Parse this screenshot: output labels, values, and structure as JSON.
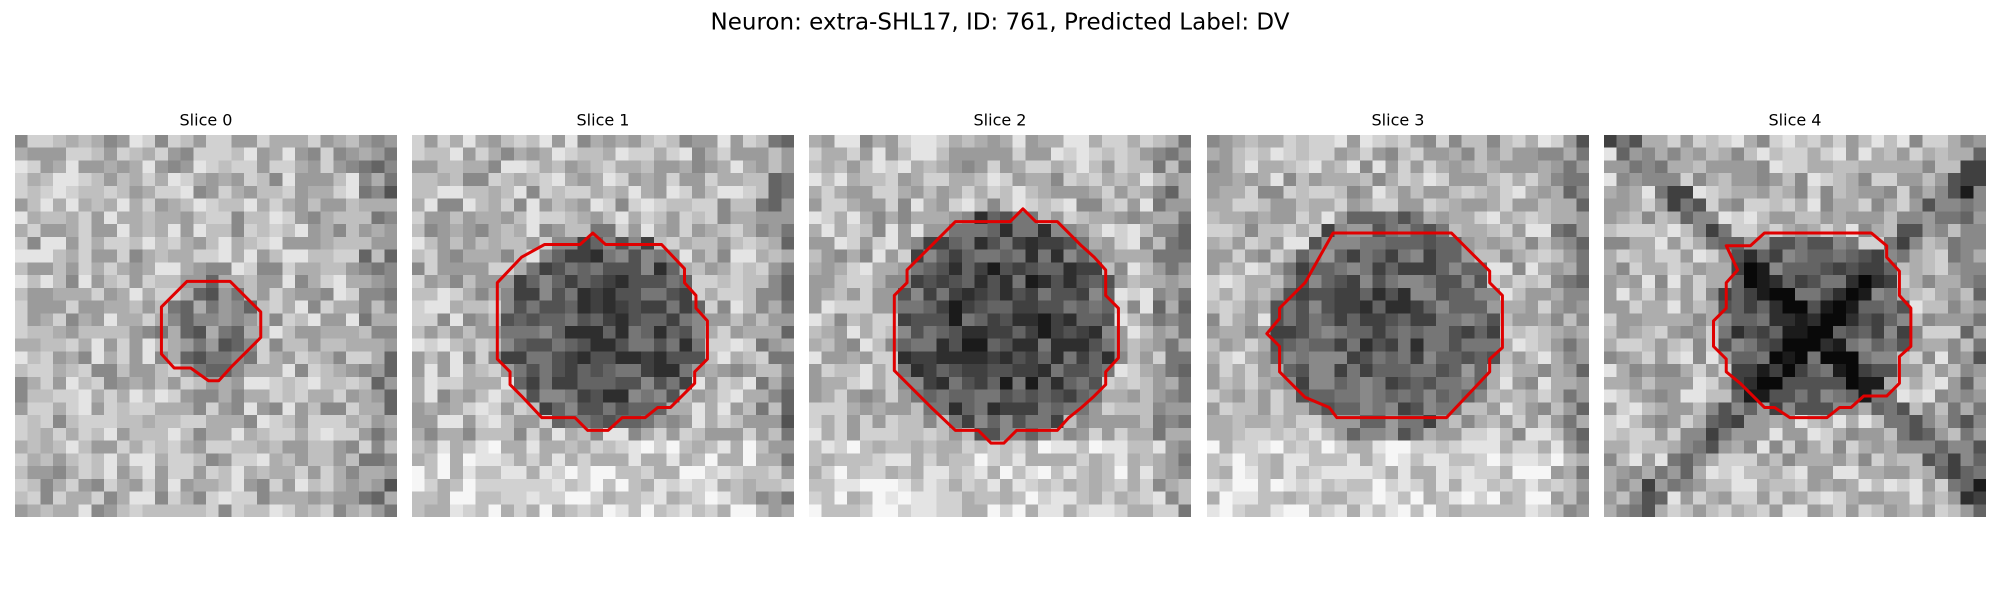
{
  "figure": {
    "title": "Neuron: extra-SHL17, ID: 761, Predicted Label: DV",
    "panels": [
      {
        "title": "Slice 0"
      },
      {
        "title": "Slice 1"
      },
      {
        "title": "Slice 2"
      },
      {
        "title": "Slice 3"
      },
      {
        "title": "Slice 4"
      }
    ]
  }
}
